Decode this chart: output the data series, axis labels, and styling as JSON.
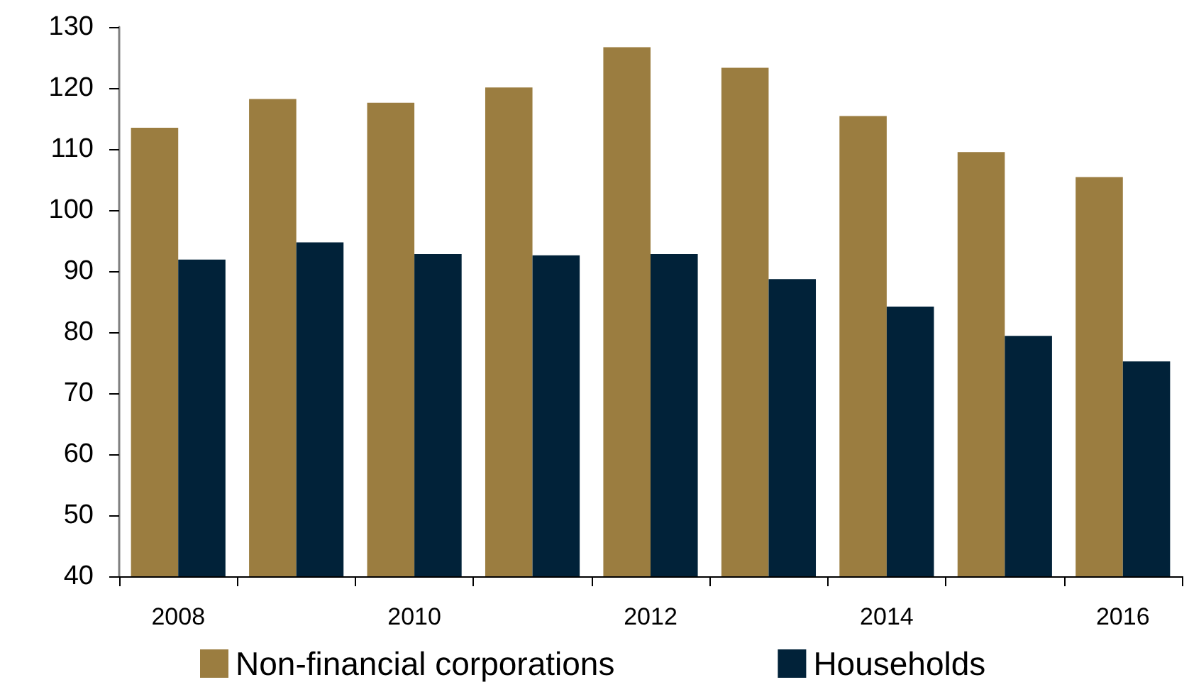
{
  "chart_data": {
    "type": "bar",
    "categories": [
      "2008",
      null,
      "2010",
      null,
      "2012",
      null,
      "2014",
      null,
      "2016"
    ],
    "series": [
      {
        "name": "Non-financial corporations",
        "color": "#9b7d40",
        "values": [
          113.5,
          118.2,
          117.6,
          120.1,
          126.7,
          123.3,
          115.4,
          109.5,
          105.4
        ]
      },
      {
        "name": "Households",
        "color": "#012239",
        "values": [
          91.9,
          94.7,
          92.8,
          92.6,
          92.8,
          88.7,
          84.2,
          79.4,
          75.2
        ]
      }
    ],
    "ylim": [
      40,
      130
    ],
    "yticks": [
      40,
      50,
      60,
      70,
      80,
      90,
      100,
      110,
      120,
      130
    ],
    "grid": false,
    "legend": "bottom"
  }
}
